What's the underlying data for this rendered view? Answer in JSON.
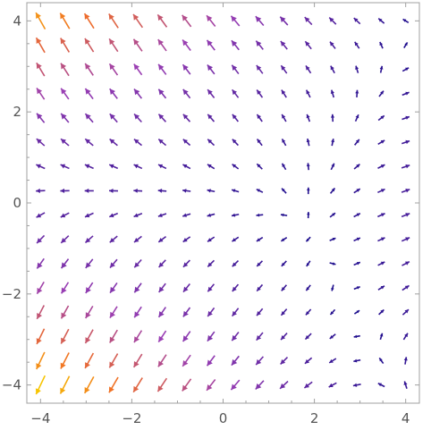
{
  "chart_data": {
    "type": "vector_field",
    "title": "",
    "xlabel": "",
    "ylabel": "",
    "xlim": [
      -4.3,
      4.3
    ],
    "ylim": [
      -4.4,
      4.4
    ],
    "x_ticks": [
      -4,
      -2,
      0,
      2,
      4
    ],
    "y_ticks": [
      -4,
      -2,
      0,
      2,
      4
    ],
    "x_tick_labels": [
      "−4",
      "−2",
      "0",
      "2",
      "4"
    ],
    "y_tick_labels": [
      "−4",
      "−2",
      "0",
      "2",
      "4"
    ],
    "grid": false,
    "legend": "none",
    "grid_points": {
      "x_range": [
        -4,
        4
      ],
      "y_range": [
        -4,
        4
      ],
      "count": 16
    },
    "color_scale": {
      "low": "#1a0c8c",
      "mid": "#9a3fb4",
      "high": "#f7c400",
      "by": "magnitude"
    },
    "field_description_visible": "arrows point leftward along y=0, curve upward for y>0 and downward for y<0; longest near left edge, shortest near (0,0.5) and (3,0)"
  }
}
